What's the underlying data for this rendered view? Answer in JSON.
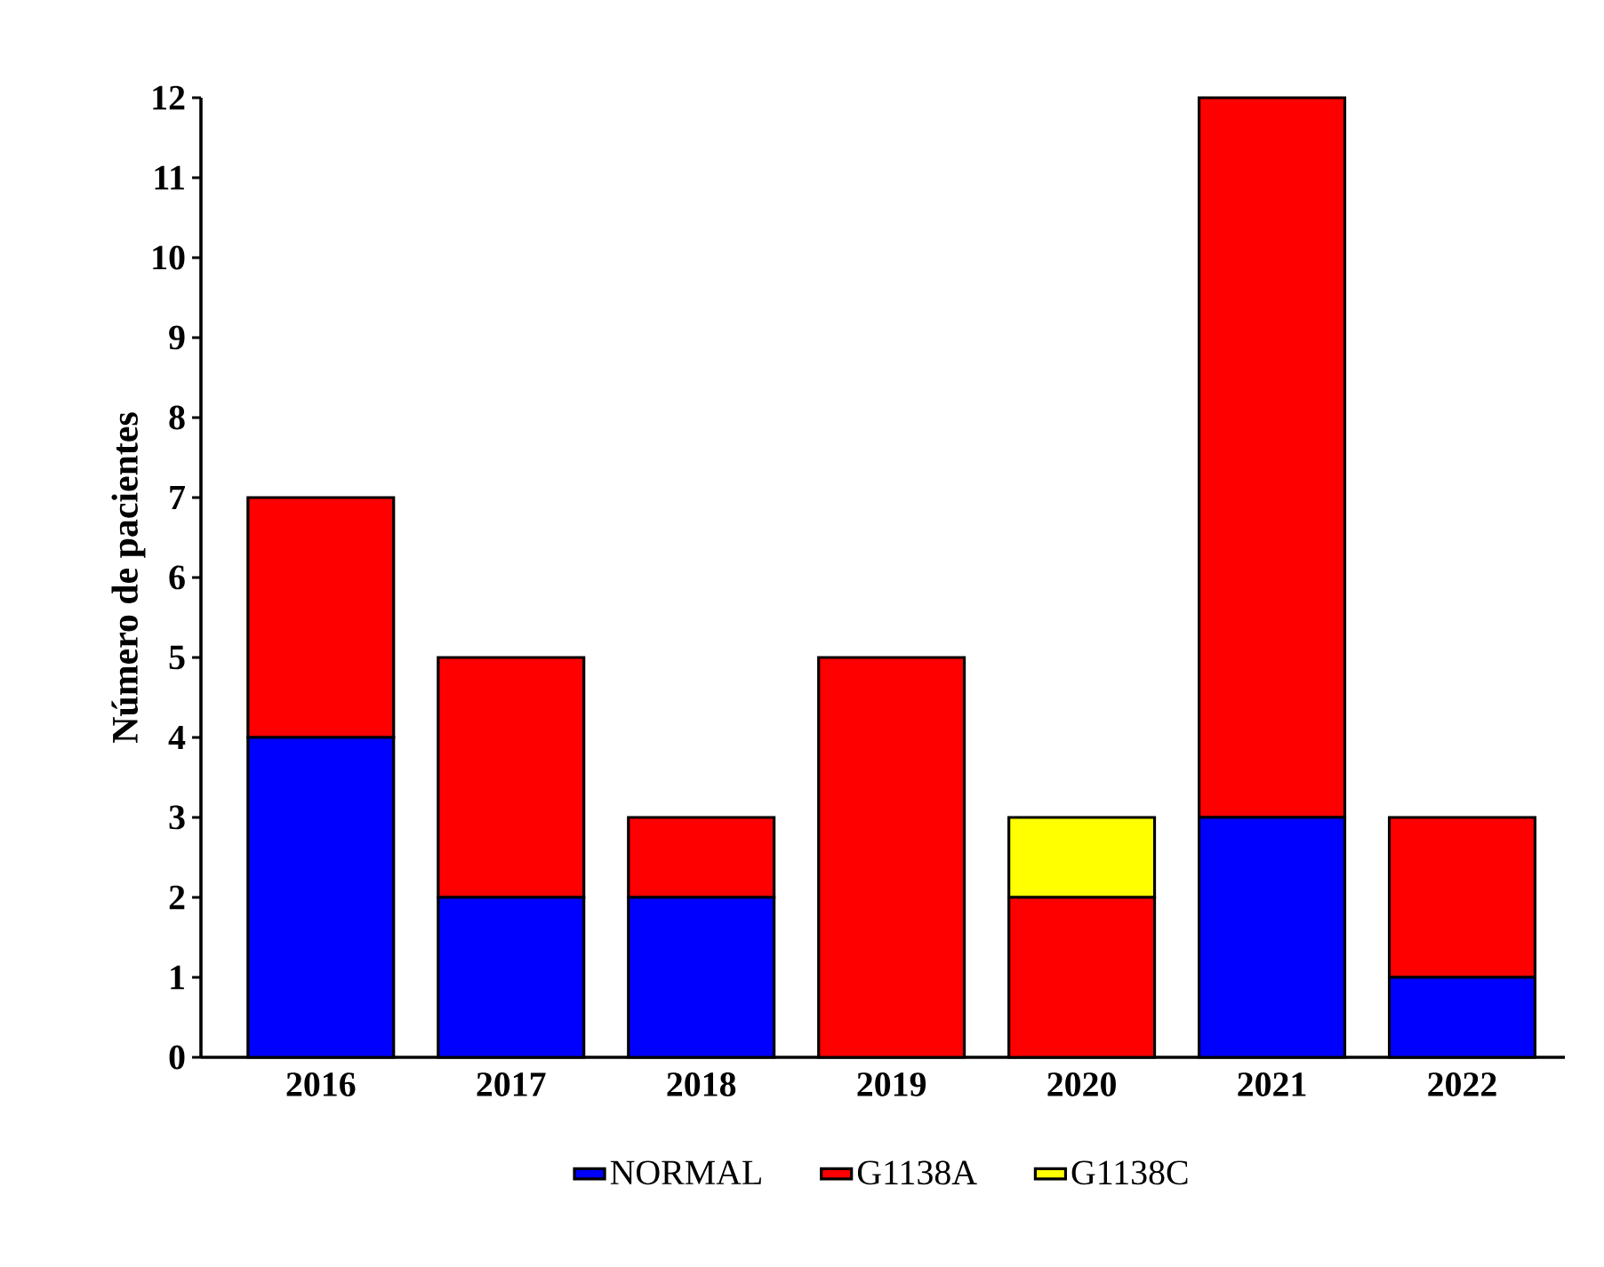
{
  "chart_data": {
    "type": "bar",
    "stacked": true,
    "ylabel": "Número de pacientes",
    "categories": [
      "2016",
      "2017",
      "2018",
      "2019",
      "2020",
      "2021",
      "2022"
    ],
    "series": [
      {
        "name": "NORMAL",
        "color": "#0000ff",
        "values": [
          4,
          2,
          2,
          0,
          0,
          3,
          1
        ]
      },
      {
        "name": "G1138A",
        "color": "#ff0000",
        "values": [
          3,
          3,
          1,
          5,
          2,
          9,
          2
        ]
      },
      {
        "name": "G1138C",
        "color": "#ffff00",
        "values": [
          0,
          0,
          0,
          0,
          1,
          0,
          0
        ]
      }
    ],
    "ylim": [
      0,
      12
    ],
    "yticks": [
      0,
      1,
      2,
      3,
      4,
      5,
      6,
      7,
      8,
      9,
      10,
      11,
      12
    ],
    "legend": "bottom"
  }
}
